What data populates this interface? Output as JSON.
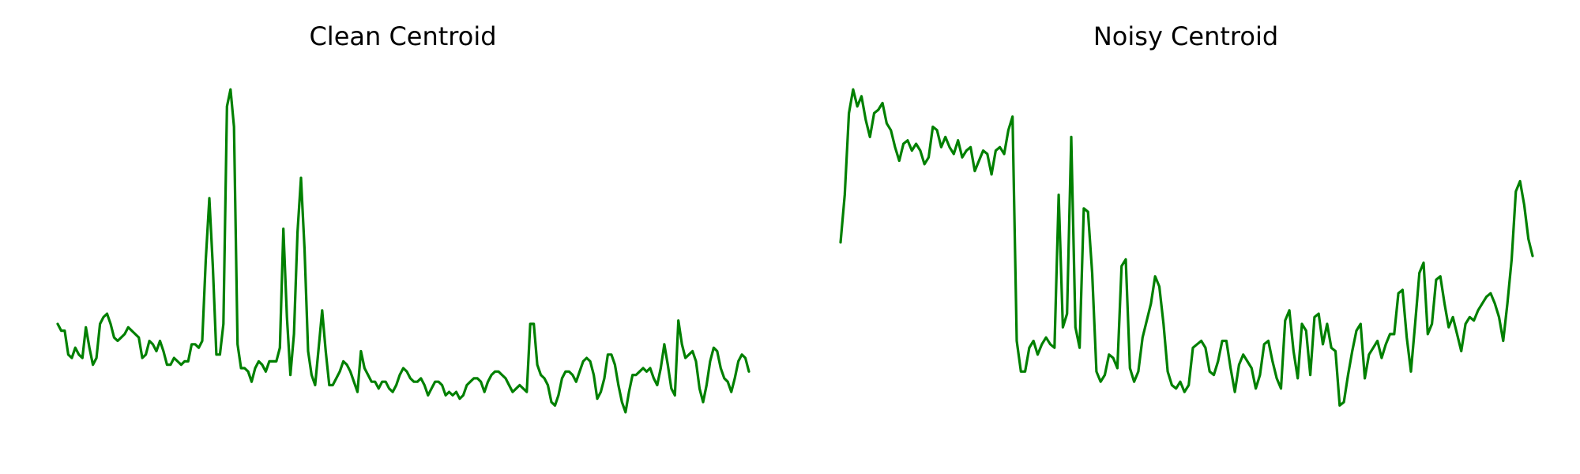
{
  "chart_data": [
    {
      "type": "line",
      "title": "Clean Centroid",
      "xlabel": "",
      "ylabel": "",
      "grid": false,
      "axes_visible": false,
      "line_color": "#008000",
      "values": [
        0.19,
        0.17,
        0.17,
        0.1,
        0.09,
        0.12,
        0.1,
        0.09,
        0.18,
        0.12,
        0.07,
        0.09,
        0.19,
        0.21,
        0.22,
        0.19,
        0.15,
        0.14,
        0.15,
        0.16,
        0.18,
        0.17,
        0.16,
        0.15,
        0.09,
        0.1,
        0.14,
        0.13,
        0.11,
        0.14,
        0.11,
        0.07,
        0.07,
        0.09,
        0.08,
        0.07,
        0.08,
        0.08,
        0.13,
        0.13,
        0.12,
        0.14,
        0.38,
        0.56,
        0.36,
        0.1,
        0.1,
        0.19,
        0.83,
        0.88,
        0.77,
        0.13,
        0.06,
        0.06,
        0.05,
        0.02,
        0.06,
        0.08,
        0.07,
        0.05,
        0.08,
        0.08,
        0.08,
        0.12,
        0.47,
        0.21,
        0.04,
        0.16,
        0.46,
        0.62,
        0.41,
        0.11,
        0.04,
        0.01,
        0.12,
        0.23,
        0.11,
        0.01,
        0.01,
        0.03,
        0.05,
        0.08,
        0.07,
        0.05,
        0.02,
        -0.01,
        0.11,
        0.06,
        0.04,
        0.02,
        0.02,
        0.0,
        0.02,
        0.02,
        0.0,
        -0.01,
        0.01,
        0.04,
        0.06,
        0.05,
        0.03,
        0.02,
        0.02,
        0.03,
        0.01,
        -0.02,
        0.0,
        0.02,
        0.02,
        0.01,
        -0.02,
        -0.01,
        -0.02,
        -0.01,
        -0.03,
        -0.02,
        0.01,
        0.02,
        0.03,
        0.03,
        0.02,
        -0.01,
        0.02,
        0.04,
        0.05,
        0.05,
        0.04,
        0.03,
        0.01,
        -0.01,
        0.0,
        0.01,
        0.0,
        -0.01,
        0.19,
        0.19,
        0.07,
        0.04,
        0.03,
        0.01,
        -0.04,
        -0.05,
        -0.02,
        0.03,
        0.05,
        0.05,
        0.04,
        0.02,
        0.05,
        0.08,
        0.09,
        0.08,
        0.04,
        -0.03,
        -0.01,
        0.03,
        0.1,
        0.1,
        0.07,
        0.01,
        -0.04,
        -0.07,
        -0.01,
        0.04,
        0.04,
        0.05,
        0.06,
        0.05,
        0.06,
        0.03,
        0.01,
        0.06,
        0.13,
        0.07,
        0.0,
        -0.02,
        0.2,
        0.13,
        0.09,
        0.1,
        0.11,
        0.08,
        0.0,
        -0.04,
        0.01,
        0.08,
        0.12,
        0.11,
        0.06,
        0.03,
        0.02,
        -0.01,
        0.03,
        0.08,
        0.1,
        0.09,
        0.05
      ],
      "ylim": [
        -0.14,
        0.92
      ]
    },
    {
      "type": "line",
      "title": "Noisy Centroid",
      "xlabel": "",
      "ylabel": "",
      "grid": false,
      "axes_visible": false,
      "line_color": "#008000",
      "values": [
        0.43,
        0.57,
        0.81,
        0.88,
        0.83,
        0.86,
        0.79,
        0.74,
        0.81,
        0.82,
        0.84,
        0.78,
        0.76,
        0.71,
        0.67,
        0.72,
        0.73,
        0.7,
        0.72,
        0.7,
        0.66,
        0.68,
        0.77,
        0.76,
        0.71,
        0.74,
        0.71,
        0.69,
        0.73,
        0.68,
        0.7,
        0.71,
        0.64,
        0.67,
        0.7,
        0.69,
        0.63,
        0.7,
        0.71,
        0.69,
        0.76,
        0.8,
        0.14,
        0.05,
        0.05,
        0.12,
        0.14,
        0.1,
        0.13,
        0.15,
        0.13,
        0.12,
        0.57,
        0.18,
        0.22,
        0.74,
        0.18,
        0.12,
        0.53,
        0.52,
        0.34,
        0.05,
        0.02,
        0.04,
        0.1,
        0.09,
        0.06,
        0.36,
        0.38,
        0.06,
        0.02,
        0.05,
        0.15,
        0.2,
        0.25,
        0.33,
        0.3,
        0.19,
        0.05,
        0.01,
        0.0,
        0.02,
        -0.01,
        0.01,
        0.12,
        0.13,
        0.14,
        0.12,
        0.05,
        0.04,
        0.08,
        0.14,
        0.14,
        0.06,
        -0.01,
        0.07,
        0.1,
        0.08,
        0.06,
        0.0,
        0.04,
        0.13,
        0.14,
        0.08,
        0.03,
        0.0,
        0.2,
        0.23,
        0.11,
        0.03,
        0.19,
        0.17,
        0.04,
        0.21,
        0.22,
        0.13,
        0.19,
        0.12,
        0.11,
        -0.05,
        -0.04,
        0.04,
        0.11,
        0.17,
        0.19,
        0.03,
        0.1,
        0.12,
        0.14,
        0.09,
        0.13,
        0.16,
        0.16,
        0.28,
        0.29,
        0.15,
        0.05,
        0.19,
        0.34,
        0.37,
        0.16,
        0.19,
        0.32,
        0.33,
        0.25,
        0.18,
        0.21,
        0.16,
        0.11,
        0.19,
        0.21,
        0.2,
        0.23,
        0.25,
        0.27,
        0.28,
        0.25,
        0.21,
        0.14,
        0.25,
        0.38,
        0.58,
        0.61,
        0.54,
        0.44,
        0.39
      ],
      "ylim": [
        -0.14,
        0.92
      ]
    }
  ]
}
